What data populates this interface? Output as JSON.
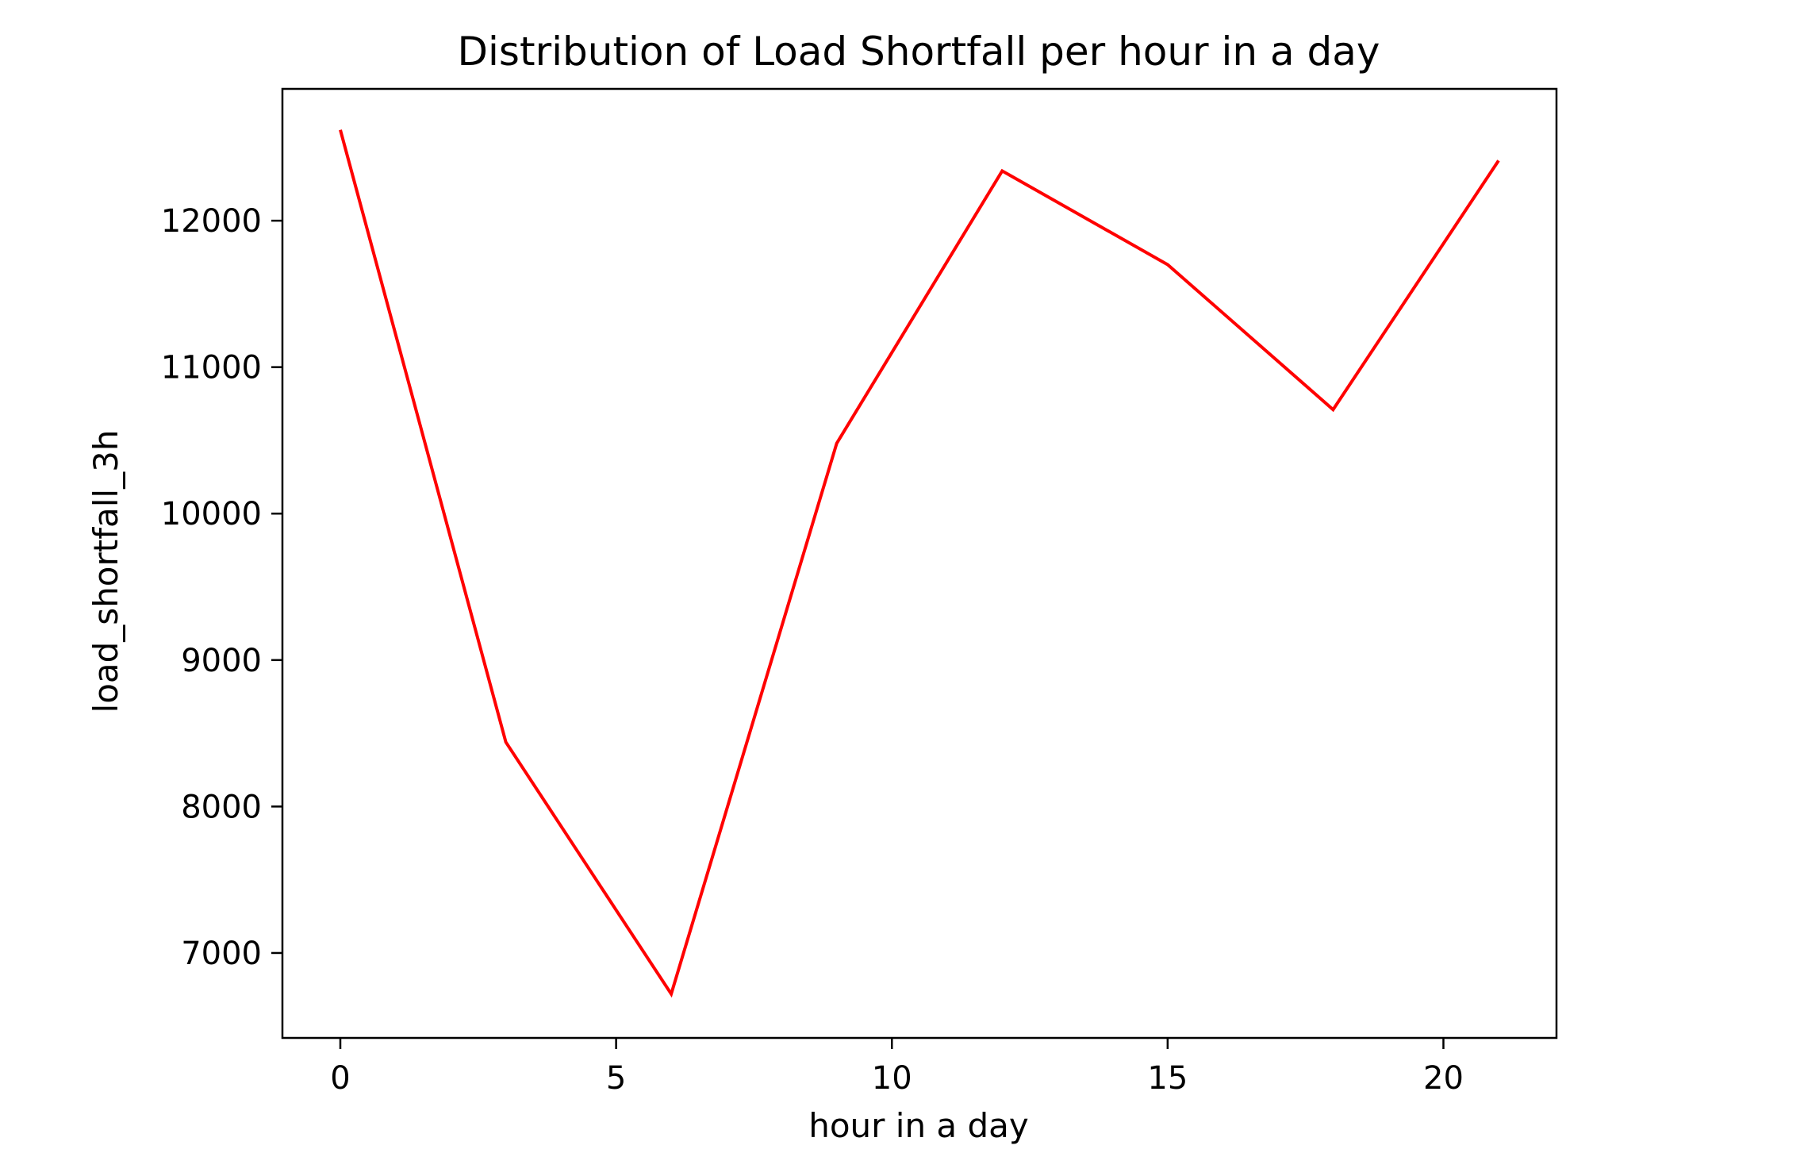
{
  "chart_data": {
    "type": "line",
    "title": "Distribution of Load Shortfall per hour in a day",
    "xlabel": "hour in a day",
    "ylabel": "load_shortfall_3h",
    "xlim": [
      -1.05,
      22.05
    ],
    "ylim": [
      6420,
      12900
    ],
    "xticks": [
      0,
      5,
      10,
      15,
      20
    ],
    "yticks": [
      7000,
      8000,
      9000,
      10000,
      11000,
      12000
    ],
    "grid": false,
    "series": [
      {
        "color": "#ff0000",
        "x": [
          0,
          3,
          6,
          9,
          12,
          15,
          18,
          21
        ],
        "y": [
          12620,
          8440,
          6720,
          10480,
          12340,
          11700,
          10710,
          12410
        ]
      }
    ]
  }
}
